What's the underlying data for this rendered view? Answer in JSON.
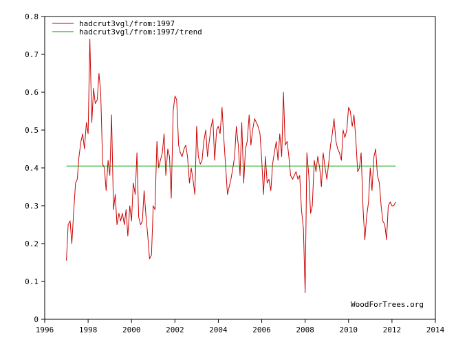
{
  "chart_data": {
    "type": "line",
    "title": "",
    "xlabel": "",
    "ylabel": "",
    "xlim": [
      1996,
      2014
    ],
    "ylim": [
      0,
      0.8
    ],
    "x_ticks": [
      1996,
      1998,
      2000,
      2002,
      2004,
      2006,
      2008,
      2010,
      2012,
      2014
    ],
    "y_ticks": [
      0,
      0.1,
      0.2,
      0.3,
      0.4,
      0.5,
      0.6,
      0.7,
      0.8
    ],
    "x_tick_labels": [
      "1996",
      "1998",
      "2000",
      "2002",
      "2004",
      "2006",
      "2008",
      "2010",
      "2012",
      "2014"
    ],
    "y_tick_labels": [
      "0",
      "0.1",
      "0.2",
      "0.3",
      "0.4",
      "0.5",
      "0.6",
      "0.7",
      "0.8"
    ],
    "grid": false,
    "legend_position": "top-left",
    "credit": "WoodForTrees.org",
    "series": [
      {
        "name": "hadcrut3vgl/from:1997",
        "color": "#cc0000",
        "x": [
          1997.0,
          1997.08,
          1997.17,
          1997.25,
          1997.33,
          1997.42,
          1997.5,
          1997.58,
          1997.67,
          1997.75,
          1997.83,
          1997.92,
          1998.0,
          1998.08,
          1998.17,
          1998.25,
          1998.33,
          1998.42,
          1998.5,
          1998.58,
          1998.67,
          1998.75,
          1998.83,
          1998.92,
          1999.0,
          1999.08,
          1999.17,
          1999.25,
          1999.33,
          1999.42,
          1999.5,
          1999.58,
          1999.67,
          1999.75,
          1999.83,
          1999.92,
          2000.0,
          2000.08,
          2000.17,
          2000.25,
          2000.33,
          2000.42,
          2000.5,
          2000.58,
          2000.67,
          2000.75,
          2000.83,
          2000.92,
          2001.0,
          2001.08,
          2001.17,
          2001.25,
          2001.33,
          2001.42,
          2001.5,
          2001.58,
          2001.67,
          2001.75,
          2001.83,
          2001.92,
          2002.0,
          2002.08,
          2002.17,
          2002.25,
          2002.33,
          2002.42,
          2002.5,
          2002.58,
          2002.67,
          2002.75,
          2002.83,
          2002.92,
          2003.0,
          2003.08,
          2003.17,
          2003.25,
          2003.33,
          2003.42,
          2003.5,
          2003.58,
          2003.67,
          2003.75,
          2003.83,
          2003.92,
          2004.0,
          2004.08,
          2004.17,
          2004.25,
          2004.33,
          2004.42,
          2004.5,
          2004.58,
          2004.67,
          2004.75,
          2004.83,
          2004.92,
          2005.0,
          2005.08,
          2005.17,
          2005.25,
          2005.33,
          2005.42,
          2005.5,
          2005.58,
          2005.67,
          2005.75,
          2005.83,
          2005.92,
          2006.0,
          2006.08,
          2006.17,
          2006.25,
          2006.33,
          2006.42,
          2006.5,
          2006.58,
          2006.67,
          2006.75,
          2006.83,
          2006.92,
          2007.0,
          2007.08,
          2007.17,
          2007.25,
          2007.33,
          2007.42,
          2007.5,
          2007.58,
          2007.67,
          2007.75,
          2007.83,
          2007.92,
          2008.0,
          2008.08,
          2008.17,
          2008.25,
          2008.33,
          2008.42,
          2008.5,
          2008.58,
          2008.67,
          2008.75,
          2008.83,
          2008.92,
          2009.0,
          2009.08,
          2009.17,
          2009.25,
          2009.33,
          2009.42,
          2009.5,
          2009.58,
          2009.67,
          2009.75,
          2009.83,
          2009.92,
          2010.0,
          2010.08,
          2010.17,
          2010.25,
          2010.33,
          2010.42,
          2010.5,
          2010.58,
          2010.67,
          2010.75,
          2010.83,
          2010.92,
          2011.0,
          2011.08,
          2011.17,
          2011.25,
          2011.33,
          2011.42,
          2011.5,
          2011.58,
          2011.67,
          2011.75,
          2011.83,
          2011.92,
          2012.0,
          2012.08,
          2012.17
        ],
        "values": [
          0.155,
          0.25,
          0.26,
          0.2,
          0.28,
          0.36,
          0.37,
          0.43,
          0.47,
          0.49,
          0.45,
          0.52,
          0.49,
          0.74,
          0.52,
          0.61,
          0.57,
          0.58,
          0.65,
          0.6,
          0.41,
          0.4,
          0.34,
          0.42,
          0.38,
          0.54,
          0.29,
          0.33,
          0.25,
          0.28,
          0.26,
          0.28,
          0.25,
          0.29,
          0.22,
          0.3,
          0.26,
          0.36,
          0.33,
          0.44,
          0.27,
          0.25,
          0.26,
          0.34,
          0.27,
          0.22,
          0.16,
          0.17,
          0.3,
          0.29,
          0.47,
          0.4,
          0.42,
          0.44,
          0.49,
          0.38,
          0.45,
          0.43,
          0.32,
          0.55,
          0.59,
          0.58,
          0.46,
          0.44,
          0.43,
          0.45,
          0.46,
          0.43,
          0.36,
          0.4,
          0.37,
          0.33,
          0.51,
          0.43,
          0.41,
          0.42,
          0.47,
          0.5,
          0.43,
          0.47,
          0.51,
          0.53,
          0.42,
          0.5,
          0.51,
          0.49,
          0.56,
          0.48,
          0.41,
          0.33,
          0.35,
          0.37,
          0.4,
          0.43,
          0.51,
          0.46,
          0.38,
          0.52,
          0.36,
          0.45,
          0.47,
          0.54,
          0.46,
          0.5,
          0.53,
          0.52,
          0.51,
          0.49,
          0.42,
          0.33,
          0.43,
          0.36,
          0.37,
          0.34,
          0.41,
          0.44,
          0.47,
          0.42,
          0.49,
          0.43,
          0.6,
          0.46,
          0.47,
          0.43,
          0.38,
          0.37,
          0.38,
          0.39,
          0.37,
          0.38,
          0.29,
          0.24,
          0.07,
          0.44,
          0.38,
          0.28,
          0.3,
          0.42,
          0.39,
          0.43,
          0.4,
          0.35,
          0.44,
          0.4,
          0.37,
          0.41,
          0.46,
          0.49,
          0.53,
          0.47,
          0.45,
          0.44,
          0.42,
          0.5,
          0.48,
          0.5,
          0.56,
          0.55,
          0.51,
          0.54,
          0.48,
          0.39,
          0.4,
          0.44,
          0.29,
          0.21,
          0.27,
          0.31,
          0.4,
          0.34,
          0.43,
          0.45,
          0.38,
          0.36,
          0.3,
          0.26,
          0.25,
          0.21,
          0.3,
          0.31,
          0.3,
          0.3,
          0.31
        ]
      },
      {
        "name": "hadcrut3vgl/from:1997/trend",
        "color": "#009900",
        "x": [
          1997.0,
          2012.17
        ],
        "values": [
          0.405,
          0.405
        ]
      }
    ]
  }
}
